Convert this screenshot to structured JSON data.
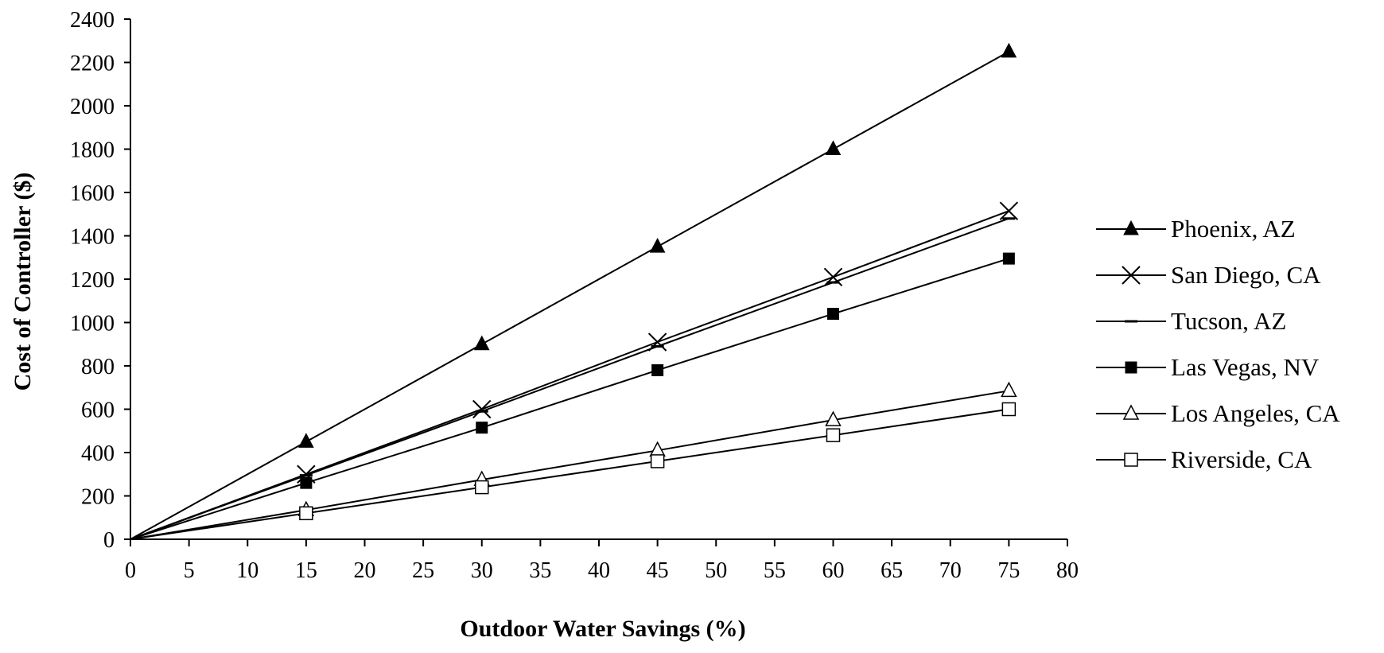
{
  "chart_data": {
    "type": "line",
    "title": "",
    "xlabel": "Outdoor Water Savings (%)",
    "ylabel": "Cost of Controller ($)",
    "xlim": [
      0,
      80
    ],
    "ylim": [
      0,
      2400
    ],
    "x_ticks": [
      0,
      5,
      10,
      15,
      20,
      25,
      30,
      35,
      40,
      45,
      50,
      55,
      60,
      65,
      70,
      75,
      80
    ],
    "y_ticks": [
      0,
      200,
      400,
      600,
      800,
      1000,
      1200,
      1400,
      1600,
      1800,
      2000,
      2200,
      2400
    ],
    "grid": false,
    "legend_position": "right",
    "x": [
      0,
      15,
      30,
      45,
      60,
      75
    ],
    "series": [
      {
        "name": "Phoenix, AZ",
        "marker": "filled-triangle",
        "values": [
          0,
          450,
          900,
          1350,
          1800,
          2250
        ]
      },
      {
        "name": "San Diego, CA",
        "marker": "cross",
        "values": [
          0,
          300,
          600,
          910,
          1210,
          1515
        ]
      },
      {
        "name": "Tucson, AZ",
        "marker": "dash",
        "values": [
          0,
          295,
          590,
          890,
          1185,
          1480
        ]
      },
      {
        "name": "Las Vegas, NV",
        "marker": "filled-square",
        "values": [
          0,
          260,
          515,
          780,
          1040,
          1295
        ]
      },
      {
        "name": "Los Angeles, CA",
        "marker": "open-triangle",
        "values": [
          0,
          135,
          275,
          410,
          550,
          685
        ]
      },
      {
        "name": "Riverside, CA",
        "marker": "open-square",
        "values": [
          0,
          120,
          240,
          360,
          480,
          600
        ]
      }
    ]
  }
}
